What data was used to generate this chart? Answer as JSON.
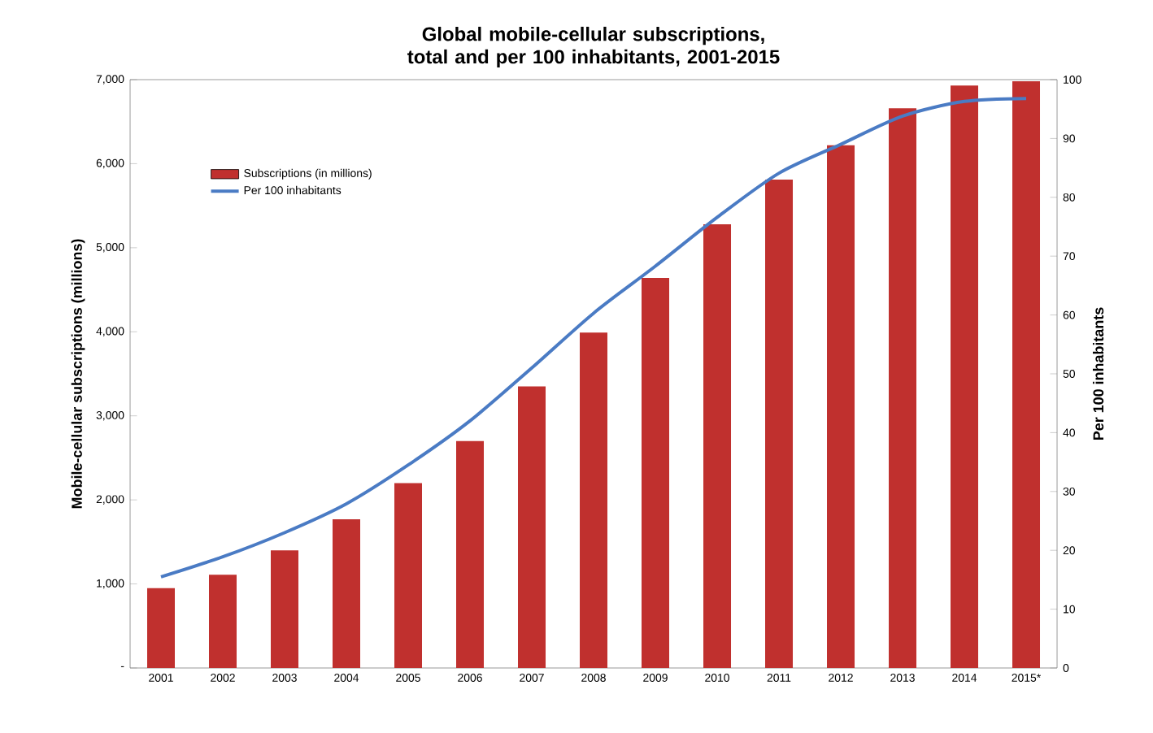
{
  "chart_data": {
    "type": "bar",
    "title": "Global mobile-cellular subscriptions, total and per 100 inhabitants, 2001-2015",
    "ylabel": "Mobile-cellular subscriptions (millions)",
    "y2label": "Per 100 inhabitants",
    "categories": [
      "2001",
      "2002",
      "2003",
      "2004",
      "2005",
      "2006",
      "2007",
      "2008",
      "2009",
      "2010",
      "2011",
      "2012",
      "2013",
      "2014",
      "2015*"
    ],
    "series": [
      {
        "name": "Subscriptions (in millions)",
        "color": "#c0302e",
        "values": [
          950,
          1110,
          1400,
          1770,
          2200,
          2700,
          3350,
          3990,
          4640,
          5280,
          5810,
          6220,
          6660,
          6930,
          6980
        ]
      },
      {
        "name": "Per 100 inhabitants",
        "type": "line",
        "axis": "y2",
        "color": "#4a7bc4",
        "values": [
          15.5,
          18.9,
          23,
          27.9,
          34.5,
          42,
          51,
          60.3,
          68.3,
          76.6,
          84.1,
          89,
          93.8,
          96.3,
          96.8
        ]
      }
    ],
    "ylim": [
      0,
      7000
    ],
    "yticks": [
      {
        "value": 0,
        "label": "-"
      },
      {
        "value": 1000,
        "label": "1,000"
      },
      {
        "value": 2000,
        "label": "2,000"
      },
      {
        "value": 3000,
        "label": "3,000"
      },
      {
        "value": 4000,
        "label": "4,000"
      },
      {
        "value": 5000,
        "label": "5,000"
      },
      {
        "value": 6000,
        "label": "6,000"
      },
      {
        "value": 7000,
        "label": "7,000"
      }
    ],
    "y2lim": [
      0,
      100
    ],
    "y2ticks": [
      0,
      10,
      20,
      30,
      40,
      50,
      60,
      70,
      80,
      90,
      100
    ],
    "legend": "top left",
    "grid": false
  }
}
